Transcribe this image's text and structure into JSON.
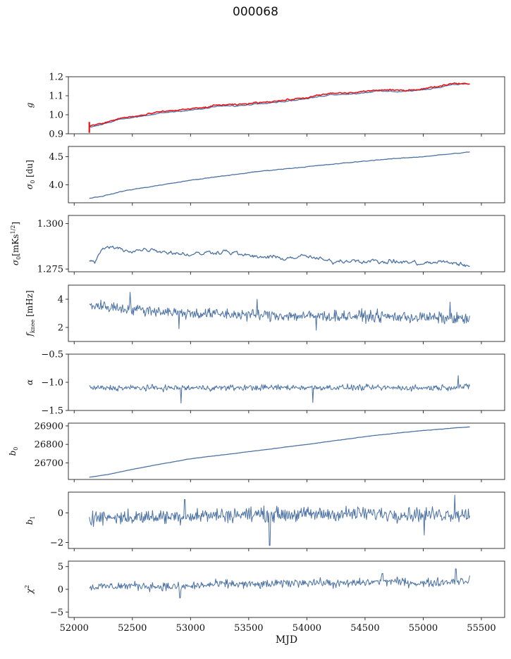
{
  "figure": {
    "title": "000068"
  },
  "chart_data": {
    "type": "line",
    "title": "000068",
    "xlabel": "MJD",
    "x_range": [
      51950,
      55700
    ],
    "x_ticks": [
      52000,
      52500,
      53000,
      53500,
      54000,
      54500,
      55000,
      55500
    ],
    "x_data_range": [
      52130,
      55400
    ],
    "colors": {
      "series": "#4c72a4",
      "model": "#e8141a"
    },
    "panels": [
      {
        "ylabel": "g",
        "ylim": [
          0.9,
          1.2
        ],
        "yticks": [
          "0.9",
          "1.0",
          "1.1",
          "1.2"
        ],
        "series": [
          {
            "kind": "smooth",
            "color": "#4c72a4",
            "noise": 0.002,
            "points": [
              [
                52130,
                0.935
              ],
              [
                52250,
                0.952
              ],
              [
                52400,
                0.978
              ],
              [
                52600,
                0.992
              ],
              [
                52750,
                1.01
              ],
              [
                52950,
                1.022
              ],
              [
                53100,
                1.03
              ],
              [
                53250,
                1.046
              ],
              [
                53400,
                1.046
              ],
              [
                53600,
                1.06
              ],
              [
                53800,
                1.07
              ],
              [
                54000,
                1.084
              ],
              [
                54200,
                1.106
              ],
              [
                54400,
                1.11
              ],
              [
                54600,
                1.124
              ],
              [
                54800,
                1.122
              ],
              [
                55000,
                1.13
              ],
              [
                55150,
                1.146
              ],
              [
                55250,
                1.16
              ],
              [
                55400,
                1.162
              ]
            ]
          },
          {
            "kind": "smooth",
            "color": "#e8141a",
            "noise": 0.003,
            "spike": [
              52130,
              0.905,
              0.962
            ],
            "points": [
              [
                52130,
                0.94
              ],
              [
                52250,
                0.955
              ],
              [
                52400,
                0.982
              ],
              [
                52600,
                0.998
              ],
              [
                52750,
                1.016
              ],
              [
                52950,
                1.028
              ],
              [
                53100,
                1.036
              ],
              [
                53250,
                1.052
              ],
              [
                53400,
                1.052
              ],
              [
                53600,
                1.066
              ],
              [
                53800,
                1.076
              ],
              [
                54000,
                1.09
              ],
              [
                54200,
                1.112
              ],
              [
                54400,
                1.116
              ],
              [
                54600,
                1.13
              ],
              [
                54800,
                1.128
              ],
              [
                55000,
                1.136
              ],
              [
                55150,
                1.152
              ],
              [
                55250,
                1.166
              ],
              [
                55400,
                1.164
              ]
            ]
          }
        ]
      },
      {
        "ylabel": "σ0 [du]",
        "ylim": [
          3.68,
          4.68
        ],
        "yticks": [
          "4.0",
          "4.5"
        ],
        "ytick_values": [
          4.0,
          4.5
        ],
        "series": [
          {
            "kind": "smooth",
            "color": "#4c72a4",
            "noise": 0.004,
            "points": [
              [
                52130,
                3.76
              ],
              [
                52250,
                3.8
              ],
              [
                52450,
                3.9
              ],
              [
                52700,
                3.98
              ],
              [
                53000,
                4.08
              ],
              [
                53300,
                4.16
              ],
              [
                53600,
                4.24
              ],
              [
                54000,
                4.32
              ],
              [
                54300,
                4.38
              ],
              [
                54600,
                4.44
              ],
              [
                55000,
                4.5
              ],
              [
                55400,
                4.58
              ]
            ]
          }
        ]
      },
      {
        "ylabel": "σ0[mKs1/2]",
        "ylim": [
          1.2735,
          1.3045
        ],
        "yticks": [
          "1.275",
          "1.300"
        ],
        "ytick_values": [
          1.275,
          1.3
        ],
        "series": [
          {
            "kind": "smooth",
            "color": "#4c72a4",
            "noise": 0.0009,
            "points": [
              [
                52130,
                1.28
              ],
              [
                52180,
                1.279
              ],
              [
                52230,
                1.285
              ],
              [
                52300,
                1.287
              ],
              [
                52500,
                1.285
              ],
              [
                52650,
                1.286
              ],
              [
                52850,
                1.284
              ],
              [
                53000,
                1.283
              ],
              [
                53300,
                1.285
              ],
              [
                53500,
                1.282
              ],
              [
                53800,
                1.281
              ],
              [
                54000,
                1.282
              ],
              [
                54200,
                1.279
              ],
              [
                54400,
                1.28
              ],
              [
                54600,
                1.279
              ],
              [
                54800,
                1.279
              ],
              [
                55000,
                1.278
              ],
              [
                55200,
                1.279
              ],
              [
                55300,
                1.278
              ],
              [
                55400,
                1.276
              ]
            ]
          }
        ]
      },
      {
        "ylabel": "fknee [mHz]",
        "ylim": [
          1.0,
          5.0
        ],
        "yticks": [
          "2",
          "4"
        ],
        "ytick_values": [
          2,
          4
        ],
        "series": [
          {
            "kind": "noisy",
            "color": "#4c72a4",
            "noise": 0.35,
            "points": [
              [
                52130,
                3.6
              ],
              [
                52500,
                3.3
              ],
              [
                53000,
                3.0
              ],
              [
                53500,
                2.9
              ],
              [
                54000,
                2.8
              ],
              [
                54500,
                2.8
              ],
              [
                55000,
                2.7
              ],
              [
                55400,
                2.6
              ]
            ],
            "spikes": [
              [
                52480,
                4.5
              ],
              [
                52900,
                1.9
              ],
              [
                53570,
                4.0
              ],
              [
                54080,
                1.8
              ],
              [
                55230,
                3.8
              ]
            ]
          }
        ]
      },
      {
        "ylabel": "α",
        "ylim": [
          -1.5,
          -0.5
        ],
        "yticks": [
          "−1.5",
          "−1.0",
          "−0.5"
        ],
        "ytick_values": [
          -1.5,
          -1.0,
          -0.5
        ],
        "series": [
          {
            "kind": "noisy",
            "color": "#4c72a4",
            "noise": 0.045,
            "points": [
              [
                52130,
                -1.1
              ],
              [
                53000,
                -1.1
              ],
              [
                54000,
                -1.09
              ],
              [
                55000,
                -1.1
              ],
              [
                55400,
                -1.08
              ]
            ],
            "spikes": [
              [
                52920,
                -1.37
              ],
              [
                54050,
                -1.36
              ],
              [
                55300,
                -0.88
              ]
            ]
          }
        ]
      },
      {
        "ylabel": "b0",
        "ylim": [
          26610,
          26915
        ],
        "yticks": [
          "26700",
          "26800",
          "26900"
        ],
        "ytick_values": [
          26700,
          26800,
          26900
        ],
        "series": [
          {
            "kind": "smooth",
            "color": "#4c72a4",
            "noise": 0.6,
            "points": [
              [
                52130,
                26622
              ],
              [
                52300,
                26638
              ],
              [
                52500,
                26665
              ],
              [
                52800,
                26700
              ],
              [
                53000,
                26722
              ],
              [
                53300,
                26745
              ],
              [
                53600,
                26768
              ],
              [
                54000,
                26800
              ],
              [
                54300,
                26825
              ],
              [
                54600,
                26850
              ],
              [
                55000,
                26875
              ],
              [
                55400,
                26895
              ]
            ]
          }
        ]
      },
      {
        "ylabel": "b1",
        "ylim": [
          -2.4,
          1.4
        ],
        "yticks": [
          "−2",
          "0"
        ],
        "ytick_values": [
          -2,
          0
        ],
        "series": [
          {
            "kind": "noisy",
            "color": "#4c72a4",
            "noise": 0.42,
            "points": [
              [
                52130,
                -0.3
              ],
              [
                52500,
                -0.3
              ],
              [
                53000,
                -0.2
              ],
              [
                53500,
                -0.1
              ],
              [
                54000,
                -0.1
              ],
              [
                54500,
                -0.05
              ],
              [
                55000,
                -0.1
              ],
              [
                55400,
                -0.1
              ]
            ],
            "spikes": [
              [
                53680,
                -2.2
              ],
              [
                55010,
                -1.5
              ],
              [
                55270,
                1.2
              ],
              [
                52950,
                0.9
              ]
            ]
          }
        ]
      },
      {
        "ylabel": "χ2",
        "ylim": [
          -6.2,
          6.2
        ],
        "yticks": [
          "−5",
          "0",
          "5"
        ],
        "ytick_values": [
          -5,
          0,
          5
        ],
        "series": [
          {
            "kind": "noisy",
            "color": "#4c72a4",
            "noise": 0.8,
            "points": [
              [
                52130,
                0.5
              ],
              [
                52500,
                0.8
              ],
              [
                52900,
                0.5
              ],
              [
                53300,
                1.2
              ],
              [
                53600,
                1.0
              ],
              [
                54000,
                1.6
              ],
              [
                54300,
                1.2
              ],
              [
                54700,
                1.8
              ],
              [
                55000,
                1.3
              ],
              [
                55400,
                2.0
              ]
            ],
            "spikes": [
              [
                52910,
                -1.9
              ],
              [
                55280,
                4.5
              ],
              [
                54650,
                3.5
              ]
            ]
          }
        ]
      }
    ]
  }
}
